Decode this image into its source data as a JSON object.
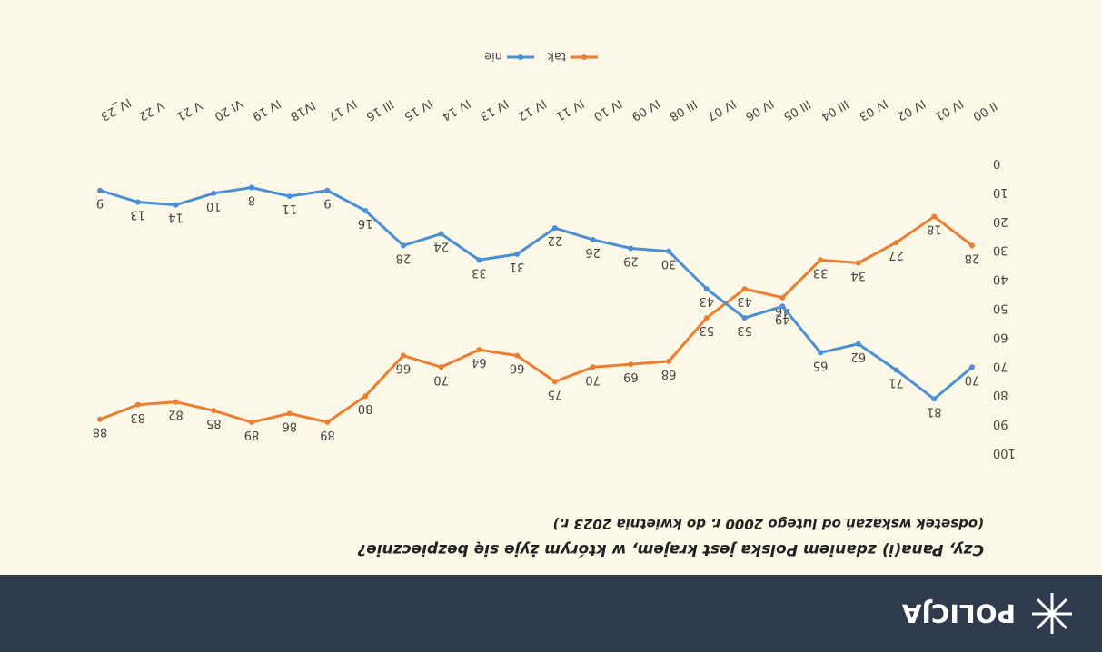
{
  "header": {
    "brand": "POLICJA"
  },
  "chart_data": {
    "type": "line",
    "title": "Czy, Pana(i) zdaniem Polska jest krajem, w którym żyje się bezpiecznie?",
    "subtitle": "(odsetek wskazań od lutego 2000 r. do kwietnia 2023 r.)",
    "categories": [
      "II 00",
      "IV 01",
      "IV 02",
      "IV 03",
      "III 04",
      "III 05",
      "IV 06",
      "IV 07",
      "III 08",
      "IV 09",
      "IV 10",
      "IV 11",
      "IV 12",
      "IV 13",
      "IV 14",
      "IV 15",
      "III 16",
      "IV 17",
      "IV18",
      "IV 19",
      "VI 20",
      "V 21",
      "V 22",
      "IV_23"
    ],
    "series": [
      {
        "name": "tak",
        "color": "#ed7d31",
        "values": [
          28,
          18,
          27,
          34,
          33,
          46,
          43,
          53,
          68,
          69,
          70,
          75,
          66,
          64,
          70,
          66,
          80,
          89,
          86,
          89,
          85,
          82,
          83,
          88
        ]
      },
      {
        "name": "nie",
        "color": "#4a8fd6",
        "values": [
          70,
          81,
          71,
          62,
          65,
          49,
          53,
          43,
          30,
          29,
          26,
          22,
          31,
          33,
          24,
          28,
          16,
          9,
          11,
          8,
          10,
          14,
          13,
          9
        ]
      }
    ],
    "ylim": [
      0,
      100
    ],
    "yticks": [
      0,
      10,
      20,
      30,
      40,
      50,
      60,
      70,
      80,
      90,
      100
    ],
    "legend": "bottom"
  }
}
